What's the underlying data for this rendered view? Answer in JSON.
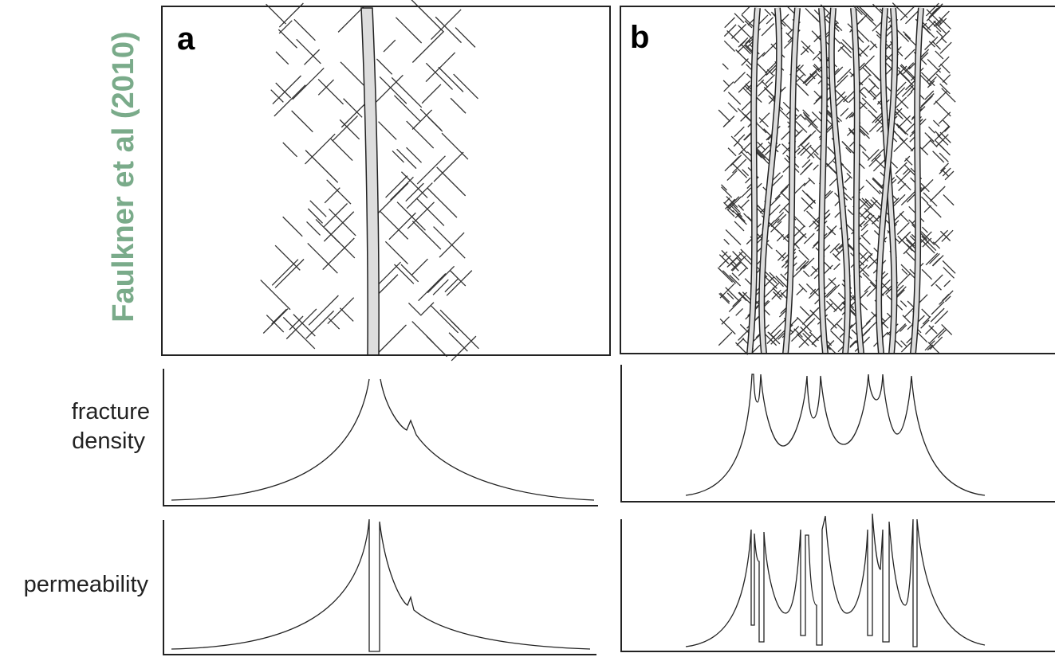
{
  "annotation": {
    "citation": "Faulkner et al (2010)"
  },
  "panels": [
    {
      "label": "a"
    },
    {
      "label": "b"
    }
  ],
  "rows": [
    {
      "label_lines": [
        "fracture",
        "density"
      ]
    },
    {
      "label": "permeability"
    }
  ]
}
